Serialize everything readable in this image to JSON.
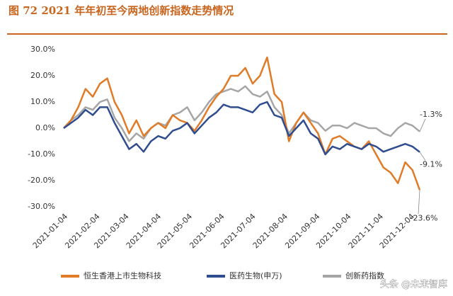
{
  "chart_data": {
    "type": "line",
    "title": "图 72 2021 年年初至今两地创新指数走势情况",
    "x": [
      "2021-01-04",
      "2021-01-11",
      "2021-01-18",
      "2021-01-25",
      "2021-02-01",
      "2021-02-08",
      "2021-02-15",
      "2021-02-22",
      "2021-03-01",
      "2021-03-08",
      "2021-03-15",
      "2021-03-22",
      "2021-03-29",
      "2021-04-05",
      "2021-04-12",
      "2021-04-19",
      "2021-04-26",
      "2021-05-03",
      "2021-05-10",
      "2021-05-17",
      "2021-05-24",
      "2021-05-31",
      "2021-06-07",
      "2021-06-14",
      "2021-06-21",
      "2021-06-28",
      "2021-07-05",
      "2021-07-12",
      "2021-07-19",
      "2021-07-26",
      "2021-08-02",
      "2021-08-09",
      "2021-08-16",
      "2021-08-23",
      "2021-08-30",
      "2021-09-06",
      "2021-09-13",
      "2021-09-20",
      "2021-09-27",
      "2021-10-04",
      "2021-10-11",
      "2021-10-18",
      "2021-10-25",
      "2021-11-01",
      "2021-11-08",
      "2021-11-15",
      "2021-11-22",
      "2021-11-29",
      "2021-12-06",
      "2021-12-13"
    ],
    "xlim": [
      "2021-01-04",
      "2021-12-13"
    ],
    "xticks": [
      "2021-01-04",
      "2021-02-04",
      "2021-03-04",
      "2021-04-04",
      "2021-05-04",
      "2021-06-04",
      "2021-07-04",
      "2021-08-04",
      "2021-09-04",
      "2021-10-04",
      "2021-11-04",
      "2021-12-04"
    ],
    "ylim": [
      -30,
      30
    ],
    "yticks": [
      {
        "value": -30,
        "label": "-30.0%"
      },
      {
        "value": -20,
        "label": "-20.0%"
      },
      {
        "value": -10,
        "label": "-10.0%"
      },
      {
        "value": 0,
        "label": "0.0%"
      },
      {
        "value": 10,
        "label": "10.0%"
      },
      {
        "value": 20,
        "label": "20.0%"
      },
      {
        "value": 30,
        "label": "30.0%"
      }
    ],
    "grid": false,
    "legend": "bottom",
    "series": [
      {
        "name": "恒生香港上市生物科技",
        "color": "#e07b28",
        "values": [
          0,
          3,
          8,
          15,
          12,
          17,
          19,
          10,
          5,
          -2,
          3,
          -3,
          0,
          2,
          0,
          5,
          3,
          2,
          -1,
          3,
          8,
          12,
          15,
          20,
          20,
          23,
          17,
          20,
          27,
          13,
          10,
          -5,
          2,
          6,
          2,
          -2,
          -10,
          -4,
          -3,
          -5,
          -7,
          -8,
          -5,
          -10,
          -15,
          -17,
          -21,
          -13,
          -16,
          -23.6
        ]
      },
      {
        "name": "医药生物(申万)",
        "color": "#2f4d8f",
        "values": [
          0,
          2,
          4,
          7,
          5,
          8,
          8,
          2,
          -3,
          -8,
          -6,
          -9,
          -5,
          -3,
          -4,
          -1,
          0,
          2,
          -2,
          1,
          4,
          6,
          9,
          8,
          8,
          7,
          6,
          9,
          10,
          5,
          4,
          -3,
          0,
          3,
          -2,
          -4,
          -10,
          -7,
          -8,
          -6,
          -7,
          -8,
          -6,
          -7,
          -9,
          -8,
          -7,
          -6,
          -7,
          -9.1
        ]
      },
      {
        "name": "创新药指数",
        "color": "#a6a6a6",
        "values": [
          0,
          3,
          5,
          8,
          7,
          10,
          11,
          4,
          0,
          -5,
          -2,
          -4,
          0,
          2,
          1,
          5,
          6,
          8,
          3,
          6,
          10,
          13,
          14,
          15,
          14,
          16,
          13,
          12,
          14,
          8,
          5,
          -2,
          2,
          6,
          3,
          2,
          -1,
          1,
          1,
          0,
          2,
          1,
          0,
          0,
          -2,
          -3,
          0,
          2,
          1,
          -1.3
        ]
      }
    ],
    "annotations": [
      "-1.3%",
      "-9.1%",
      "-23.6%"
    ],
    "watermark": "头条 @未来智库"
  }
}
